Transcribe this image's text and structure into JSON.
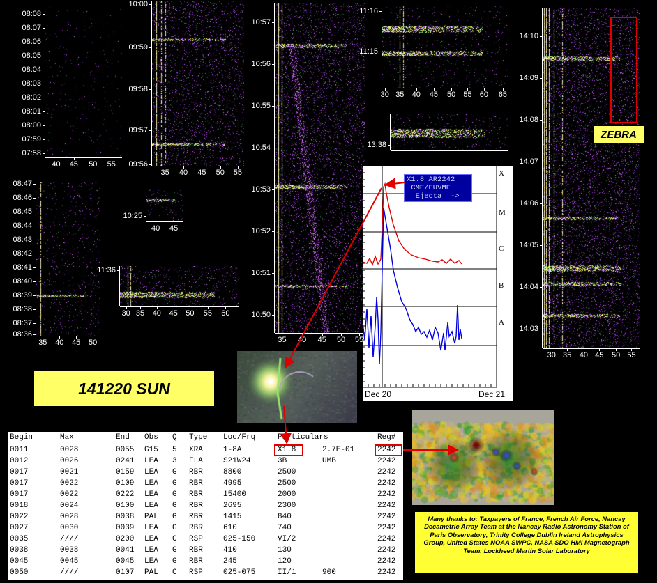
{
  "title": "141220 SUN",
  "zebra_label": "ZEBRA",
  "thanks": "Many thanks to: Taxpayers of France, French Air Force, Nancay Decametric Array Team at the Nancay Radio Astronomy Station of Paris Observatory, Trinity College Dublin Ireland Astrophysics Group, United States NOAA SWPC, NASA SDO HMI Magnetograph Team, Lockheed Martin Solar Laboratory",
  "spectrograms": {
    "p1": {
      "y_ticks": [
        "08:08",
        "08:07",
        "08:06",
        "08:05",
        "08:04",
        "08:03",
        "08:02",
        "08:01",
        "08:00",
        "07:59",
        "07:58"
      ],
      "x_ticks": [
        "40",
        "45",
        "50",
        "55"
      ]
    },
    "p2": {
      "y_ticks": [
        "10:00",
        "09:59",
        "09:58",
        "09:57",
        "09:56"
      ],
      "x_ticks": [
        "35",
        "40",
        "45",
        "50",
        "55"
      ]
    },
    "p3": {
      "y_ticks": [
        "10:57",
        "10:56",
        "10:55",
        "10:54",
        "10:53",
        "10:52",
        "10:51",
        "10:50"
      ],
      "x_ticks": [
        "35",
        "40",
        "45",
        "50",
        "55"
      ]
    },
    "p4": {
      "y_ticks": [
        "11:16",
        "11:15"
      ],
      "x_ticks": [
        "30",
        "35",
        "40",
        "45",
        "50",
        "55",
        "60",
        "65"
      ]
    },
    "p5": {
      "y_ticks": [
        "13:38"
      ],
      "x_ticks": []
    },
    "p6": {
      "y_ticks": [
        "14:10",
        "14:09",
        "14:08",
        "14:07",
        "14:06",
        "14:05",
        "14:04",
        "14:03"
      ],
      "x_ticks": [
        "30",
        "35",
        "40",
        "45",
        "50",
        "55"
      ]
    },
    "p7": {
      "y_ticks": [
        "08:47",
        "08:46",
        "08:45",
        "08:44",
        "08:43",
        "08:42",
        "08:41",
        "08:40",
        "08:39",
        "08:38",
        "08:37",
        "08:36"
      ],
      "x_ticks": [
        "35",
        "40",
        "45",
        "50"
      ]
    },
    "p8": {
      "y_ticks": [
        "10:25"
      ],
      "x_ticks": [
        "40",
        "45"
      ]
    },
    "p9": {
      "y_ticks": [
        "11:36"
      ],
      "x_ticks": [
        "30",
        "35",
        "40",
        "45",
        "50",
        "55",
        "60"
      ]
    }
  },
  "xray": {
    "right_labels": [
      "X",
      "M",
      "C",
      "B",
      "A"
    ],
    "x_labels": [
      "Dec 20",
      "Dec 21"
    ],
    "annotation": "X1.8 AR2242\n CME/EUVME\n  Ejecta  ->"
  },
  "table": {
    "headers": [
      "Begin",
      "Max",
      "End",
      "Obs",
      "Q",
      "Type",
      "Loc/Frq",
      "Particulars",
      "",
      "Reg#"
    ],
    "rows": [
      [
        "0011",
        "0028",
        "0055",
        "G15",
        "5",
        "XRA",
        "1-8A",
        "X1.8",
        "2.7E-01",
        "2242"
      ],
      [
        "0012",
        "0026",
        "0241",
        "LEA",
        "3",
        "FLA",
        "S21W24",
        "3B",
        "UMB",
        "2242"
      ],
      [
        "0017",
        "0021",
        "0159",
        "LEA",
        "G",
        "RBR",
        "8800",
        "2500",
        "",
        "2242"
      ],
      [
        "0017",
        "0022",
        "0109",
        "LEA",
        "G",
        "RBR",
        "4995",
        "2500",
        "",
        "2242"
      ],
      [
        "0017",
        "0022",
        "0222",
        "LEA",
        "G",
        "RBR",
        "15400",
        "2000",
        "",
        "2242"
      ],
      [
        "0018",
        "0024",
        "0100",
        "LEA",
        "G",
        "RBR",
        "2695",
        "2300",
        "",
        "2242"
      ],
      [
        "0022",
        "0028",
        "0038",
        "PAL",
        "G",
        "RBR",
        "1415",
        "840",
        "",
        "2242"
      ],
      [
        "0027",
        "0030",
        "0039",
        "LEA",
        "G",
        "RBR",
        "610",
        "740",
        "",
        "2242"
      ],
      [
        "0035",
        "////",
        "0200",
        "LEA",
        "C",
        "RSP",
        "025-150",
        "VI/2",
        "",
        "2242"
      ],
      [
        "0038",
        "0038",
        "0041",
        "LEA",
        "G",
        "RBR",
        "410",
        "130",
        "",
        "2242"
      ],
      [
        "0045",
        "0045",
        "0045",
        "LEA",
        "G",
        "RBR",
        "245",
        "120",
        "",
        "2242"
      ],
      [
        "0050",
        "////",
        "0107",
        "PAL",
        "C",
        "RSP",
        "025-075",
        "II/1",
        "900",
        "2242"
      ]
    ]
  },
  "colors": {
    "label_bg": "#ffff66",
    "thanks_bg": "#ffff33",
    "highlight": "#e00000",
    "flux_red": "#e00000",
    "flux_blue": "#0000e0",
    "annotation_bg": "#0000a0"
  }
}
